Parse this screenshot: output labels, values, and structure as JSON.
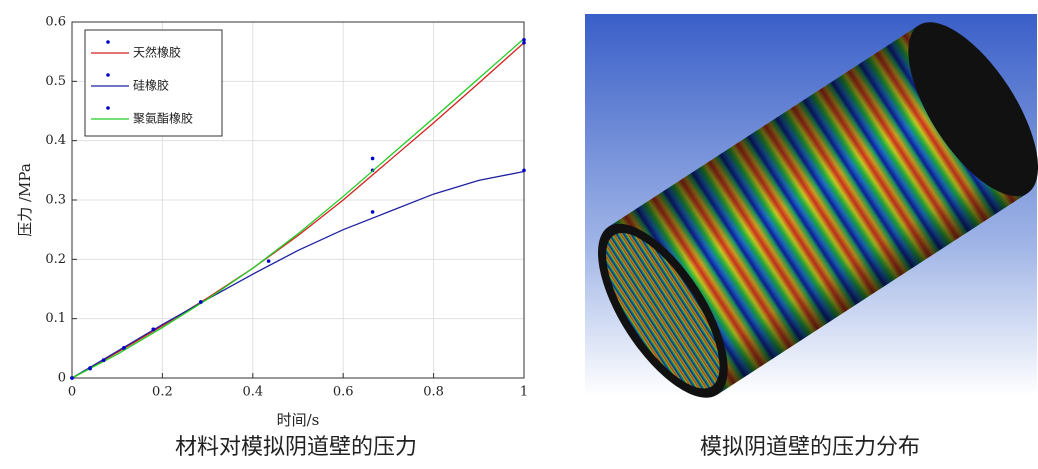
{
  "chart_data": {
    "type": "line",
    "xlabel": "时间/s",
    "ylabel": "压力 /MPa",
    "xlim": [
      0,
      1
    ],
    "xticks": [
      0,
      0.2,
      0.4,
      0.6,
      0.8,
      1
    ],
    "ylim": [
      0,
      0.6
    ],
    "yticks": [
      0,
      0.1,
      0.2,
      0.3,
      0.4,
      0.5,
      0.6
    ],
    "grid": true,
    "legend": "upper left",
    "marker_color": "#0000cc",
    "series": [
      {
        "name": "天然橡胶",
        "color": "#d42020",
        "x": [
          0,
          0.04,
          0.07,
          0.115,
          0.18,
          0.285,
          0.665,
          1
        ],
        "values": [
          0,
          0.016,
          0.03,
          0.051,
          0.082,
          0.128,
          0.35,
          0.565
        ],
        "fit_x": [
          0,
          0.1,
          0.2,
          0.3,
          0.4,
          0.5,
          0.6,
          0.7,
          0.8,
          0.9,
          1
        ],
        "fit_values": [
          0,
          0.043,
          0.088,
          0.135,
          0.185,
          0.24,
          0.3,
          0.365,
          0.43,
          0.497,
          0.565
        ]
      },
      {
        "name": "硅橡胶",
        "color": "#2020a0",
        "x": [
          0,
          0.04,
          0.07,
          0.115,
          0.18,
          0.285,
          0.435,
          0.665,
          1
        ],
        "values": [
          0,
          0.017,
          0.03,
          0.05,
          0.082,
          0.128,
          0.197,
          0.28,
          0.35
        ],
        "fit_x": [
          0,
          0.1,
          0.2,
          0.3,
          0.4,
          0.5,
          0.6,
          0.7,
          0.8,
          0.9,
          1
        ],
        "fit_values": [
          0,
          0.045,
          0.09,
          0.133,
          0.175,
          0.215,
          0.25,
          0.28,
          0.31,
          0.333,
          0.348
        ]
      },
      {
        "name": "聚氨酯橡胶",
        "color": "#22cc22",
        "x": [
          0,
          0.04,
          0.07,
          0.115,
          0.18,
          0.285,
          0.665,
          1
        ],
        "values": [
          0,
          0.016,
          0.03,
          0.051,
          0.082,
          0.128,
          0.37,
          0.57
        ],
        "fit_x": [
          0,
          0.1,
          0.2,
          0.3,
          0.4,
          0.5,
          0.6,
          0.7,
          0.8,
          0.9,
          1
        ],
        "fit_values": [
          0,
          0.04,
          0.085,
          0.133,
          0.185,
          0.243,
          0.306,
          0.372,
          0.438,
          0.505,
          0.572
        ]
      }
    ]
  },
  "captions": [
    "材料对模拟阴道壁的压力",
    "模拟阴道壁的压力分布"
  ]
}
